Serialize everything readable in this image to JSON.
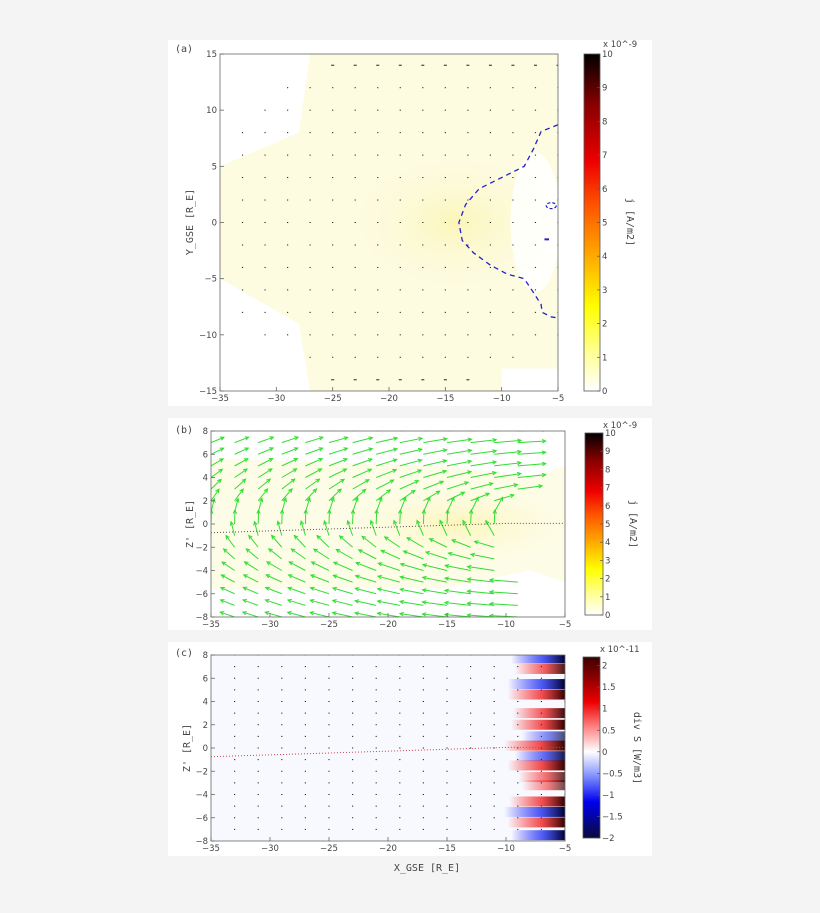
{
  "chart_data": [
    {
      "type": "heatmap",
      "panel_label": "(a)",
      "xlim": [
        -35,
        -5
      ],
      "ylim": [
        -15,
        15
      ],
      "xticks": [
        -35,
        -30,
        -25,
        -20,
        -15,
        -10,
        -5
      ],
      "yticks": [
        -15,
        -10,
        -5,
        0,
        5,
        10,
        15
      ],
      "xlabel": "",
      "ylabel": "Y_GSE  [R_E]",
      "colorbar": {
        "label": "j  [A/m2]",
        "scale_label": "x 10^-9",
        "range": [
          0,
          10
        ],
        "ticks": [
          0,
          1,
          2,
          3,
          4,
          5,
          6,
          7,
          8,
          9,
          10
        ],
        "colormap": "hot (reversed)"
      },
      "field_peak": {
        "x": -14,
        "y": 0,
        "value": 1.0
      },
      "contour": {
        "color": "#2222cc",
        "style": "dashed",
        "points": [
          [
            -5,
            8.7
          ],
          [
            -6.5,
            8.1
          ],
          [
            -7.2,
            6.5
          ],
          [
            -8,
            5
          ],
          [
            -10,
            4
          ],
          [
            -12,
            3
          ],
          [
            -13.2,
            1.6
          ],
          [
            -13.8,
            0
          ],
          [
            -13.5,
            -1.6
          ],
          [
            -12.5,
            -2.7
          ],
          [
            -11,
            -3.8
          ],
          [
            -9.5,
            -4.6
          ],
          [
            -8,
            -5
          ],
          [
            -7.2,
            -6.2
          ],
          [
            -6.5,
            -7.3
          ],
          [
            -6.4,
            -8
          ],
          [
            -5.6,
            -8.4
          ],
          [
            -5,
            -8.5
          ]
        ]
      },
      "vectors": {
        "x_grid": [
          -33,
          -31,
          -29,
          -27,
          -25,
          -23,
          -21,
          -19,
          -17,
          -15,
          -13,
          -11,
          -9,
          -7,
          -5
        ],
        "y_grid": [
          -14,
          -12,
          -10,
          -8,
          -6,
          -4,
          -2,
          0,
          2,
          4,
          6,
          8,
          10,
          12,
          14
        ],
        "color": "#222222"
      }
    },
    {
      "type": "heatmap",
      "panel_label": "(b)",
      "xlim": [
        -35,
        -5
      ],
      "ylim": [
        -8,
        8
      ],
      "xticks": [
        -35,
        -30,
        -25,
        -20,
        -15,
        -10,
        -5
      ],
      "yticks": [
        -8,
        -6,
        -4,
        -2,
        0,
        2,
        4,
        6,
        8
      ],
      "xlabel": "",
      "ylabel": "Z'   [R_E]",
      "colorbar": {
        "label": "j  [A/m2]",
        "scale_label": "x 10^-9",
        "range": [
          0,
          10
        ],
        "ticks": [
          0,
          1,
          2,
          3,
          4,
          5,
          6,
          7,
          8,
          9,
          10
        ],
        "colormap": "hot (reversed)"
      },
      "field_peak": {
        "x": -14,
        "y": 0,
        "value": 1.0
      },
      "neutral_line": {
        "color": "#555555",
        "style": "dotted",
        "points": [
          [
            -35,
            -0.75
          ],
          [
            -10,
            0.05
          ],
          [
            -5,
            0.05
          ]
        ]
      },
      "vectors": {
        "x_grid": [
          -35,
          -33,
          -31,
          -29,
          -27,
          -25,
          -23,
          -21,
          -19,
          -17,
          -15,
          -13,
          -11,
          -9
        ],
        "y_grid": [
          -8,
          -7,
          -6,
          -5,
          -4,
          -3,
          -2,
          -1,
          0,
          1,
          2,
          3,
          4,
          5,
          6,
          7,
          8
        ],
        "color": "#33dd33"
      }
    },
    {
      "type": "heatmap",
      "panel_label": "(c)",
      "xlim": [
        -35,
        -5
      ],
      "ylim": [
        -8,
        8
      ],
      "xticks": [
        -35,
        -30,
        -25,
        -20,
        -15,
        -10,
        -5
      ],
      "yticks": [
        -8,
        -6,
        -4,
        -2,
        0,
        2,
        4,
        6,
        8
      ],
      "xlabel": "X_GSE  [R_E]",
      "ylabel": "Z'   [R_E]",
      "colorbar": {
        "label": "div S  [W/m3]",
        "scale_label": "x 10^-11",
        "range": [
          -2,
          2.2
        ],
        "ticks": [
          -2,
          -1.5,
          -1,
          -0.5,
          0,
          0.5,
          1,
          1.5,
          2
        ],
        "colormap": "blue-white-red"
      },
      "neutral_line": {
        "color": "#cc4444",
        "style": "dotted",
        "points": [
          [
            -35,
            -0.75
          ],
          [
            -10,
            0.05
          ],
          [
            -5,
            0.05
          ]
        ]
      },
      "stripes": [
        {
          "z": 7.7,
          "value": -1.6
        },
        {
          "z": 6.8,
          "value": 1.4
        },
        {
          "z": 5.5,
          "value": -1.8
        },
        {
          "z": 4.6,
          "value": 1.8
        },
        {
          "z": 3.0,
          "value": 1.5
        },
        {
          "z": 2.0,
          "value": 1.6
        },
        {
          "z": 1.0,
          "value": -1.0
        },
        {
          "z": 0.2,
          "value": 2.0
        },
        {
          "z": -0.7,
          "value": -1.4
        },
        {
          "z": -1.5,
          "value": 1.8
        },
        {
          "z": -2.5,
          "value": 1.2
        },
        {
          "z": -3.2,
          "value": 1.0
        },
        {
          "z": -4.6,
          "value": 1.7
        },
        {
          "z": -5.5,
          "value": -2.0
        },
        {
          "z": -6.4,
          "value": 1.8
        },
        {
          "z": -7.5,
          "value": -1.6
        }
      ],
      "vectors": {
        "x_grid": [
          -33,
          -31,
          -29,
          -27,
          -25,
          -23,
          -21,
          -19,
          -17,
          -15,
          -13,
          -11,
          -9,
          -7,
          -5
        ],
        "y_grid": [
          -7,
          -6,
          -5,
          -4,
          -3,
          -2,
          -1,
          0,
          1,
          2,
          3,
          4,
          5,
          6,
          7,
          8
        ],
        "color": "#222222"
      }
    }
  ]
}
